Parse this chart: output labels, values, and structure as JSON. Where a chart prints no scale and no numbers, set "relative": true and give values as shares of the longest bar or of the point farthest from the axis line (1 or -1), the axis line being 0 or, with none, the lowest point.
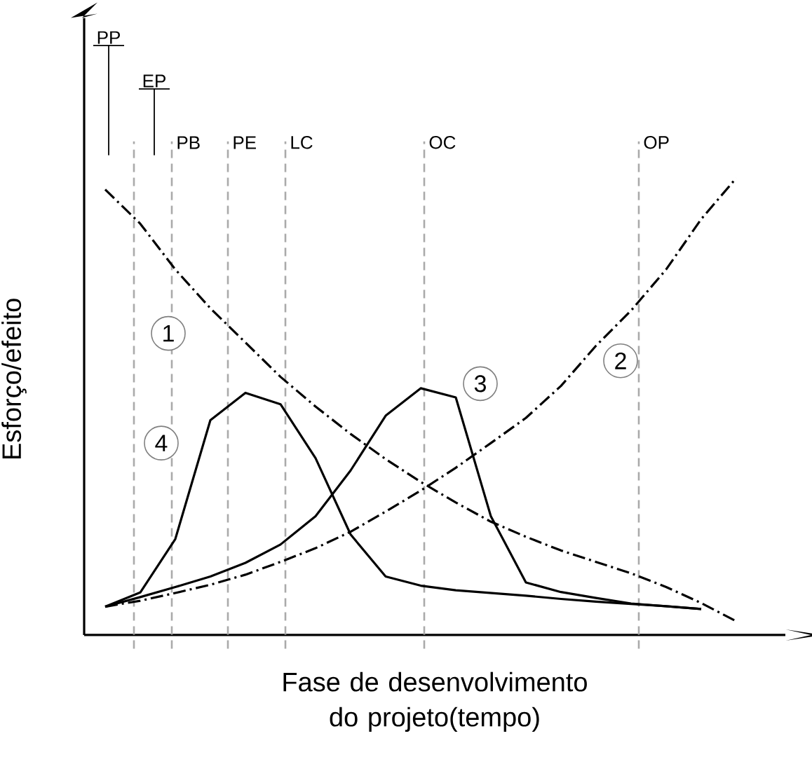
{
  "chart_data": {
    "type": "line",
    "relative": true,
    "xlabel": "Fase de desenvolvimento do projeto(tempo)",
    "ylabel": "Esforço/efeito",
    "tick_labels": false,
    "categories": [
      null,
      null,
      null,
      null,
      null,
      null,
      null,
      null,
      null,
      null,
      null,
      null,
      null,
      null,
      null,
      null,
      null,
      null,
      null
    ],
    "series": [
      {
        "color": "#000000",
        "line_style": "dashdot",
        "values": [
          0.975,
          0.9,
          0.8,
          0.715,
          0.64,
          0.565,
          0.5,
          0.44,
          0.385,
          0.335,
          0.29,
          0.248,
          0.215,
          0.185,
          0.16,
          0.135,
          0.105,
          0.07,
          0.03
        ]
      },
      {
        "color": "#000000",
        "line_style": "dashdot",
        "values": [
          0.062,
          0.075,
          0.092,
          0.11,
          0.132,
          0.16,
          0.19,
          0.226,
          0.27,
          0.316,
          0.366,
          0.42,
          0.475,
          0.545,
          0.633,
          0.71,
          0.8,
          0.91,
          1.0
        ]
      },
      {
        "color": "#000000",
        "line_style": "solid",
        "values": [
          0.062,
          0.083,
          0.105,
          0.128,
          0.158,
          0.198,
          0.26,
          0.36,
          0.48,
          0.54,
          0.52,
          0.26,
          0.115,
          0.094,
          0.081,
          0.069,
          0.063,
          0.057,
          null
        ]
      },
      {
        "color": "#000000",
        "line_style": "solid",
        "values": [
          0.062,
          0.093,
          0.21,
          0.47,
          0.53,
          0.505,
          0.387,
          0.22,
          0.128,
          0.108,
          0.098,
          0.092,
          0.086,
          0.079,
          0.073,
          0.068,
          0.063,
          0.057,
          null
        ]
      }
    ],
    "annotations": [
      "1",
      "2",
      "3",
      "4",
      "PP",
      "EP",
      "PB",
      "PE",
      "LC",
      "OC",
      "OP"
    ]
  }
}
